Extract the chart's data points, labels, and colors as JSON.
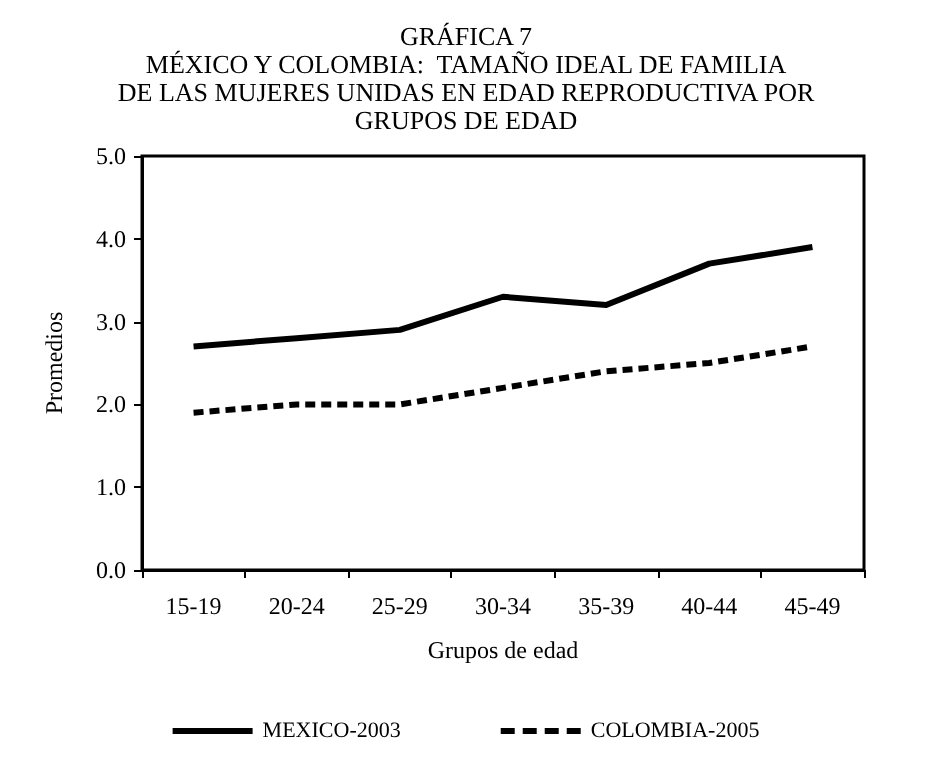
{
  "chart_data": {
    "type": "line",
    "title": "GRÁFICA 7\nMÉXICO Y COLOMBIA:  TAMAÑO IDEAL DE FAMILIA\nDE LAS MUJERES UNIDAS EN EDAD REPRODUCTIVA POR\nGRUPOS DE EDAD",
    "xlabel": "Grupos de edad",
    "ylabel": "Promedios",
    "categories": [
      "15-19",
      "20-24",
      "25-29",
      "30-34",
      "35-39",
      "40-44",
      "45-49"
    ],
    "series": [
      {
        "name": "MEXICO-2003",
        "color": "#000000",
        "line_style": "solid",
        "values": [
          2.7,
          2.8,
          2.9,
          3.3,
          3.2,
          3.7,
          3.9
        ]
      },
      {
        "name": "COLOMBIA-2005",
        "color": "#000000",
        "line_style": "dashed",
        "values": [
          1.9,
          2.0,
          2.0,
          2.2,
          2.4,
          2.5,
          2.7
        ]
      }
    ],
    "ylim": [
      0,
      5
    ],
    "yticks": [
      {
        "value": 0,
        "label": "0.0"
      },
      {
        "value": 1,
        "label": "1.0"
      },
      {
        "value": 2,
        "label": "2.0"
      },
      {
        "value": 3,
        "label": "3.0"
      },
      {
        "value": 4,
        "label": "4.0"
      },
      {
        "value": 5,
        "label": "5.0"
      }
    ],
    "grid": false,
    "legend": "bottom",
    "marker": "none"
  }
}
